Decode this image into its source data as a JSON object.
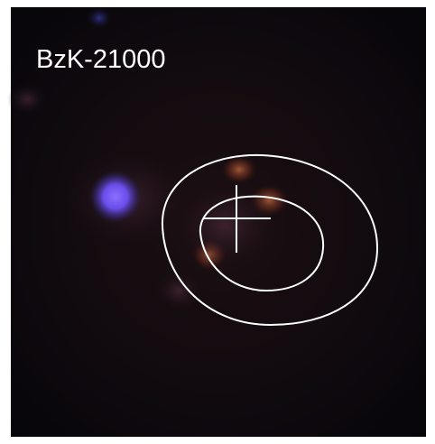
{
  "label": "BzK-21000"
}
